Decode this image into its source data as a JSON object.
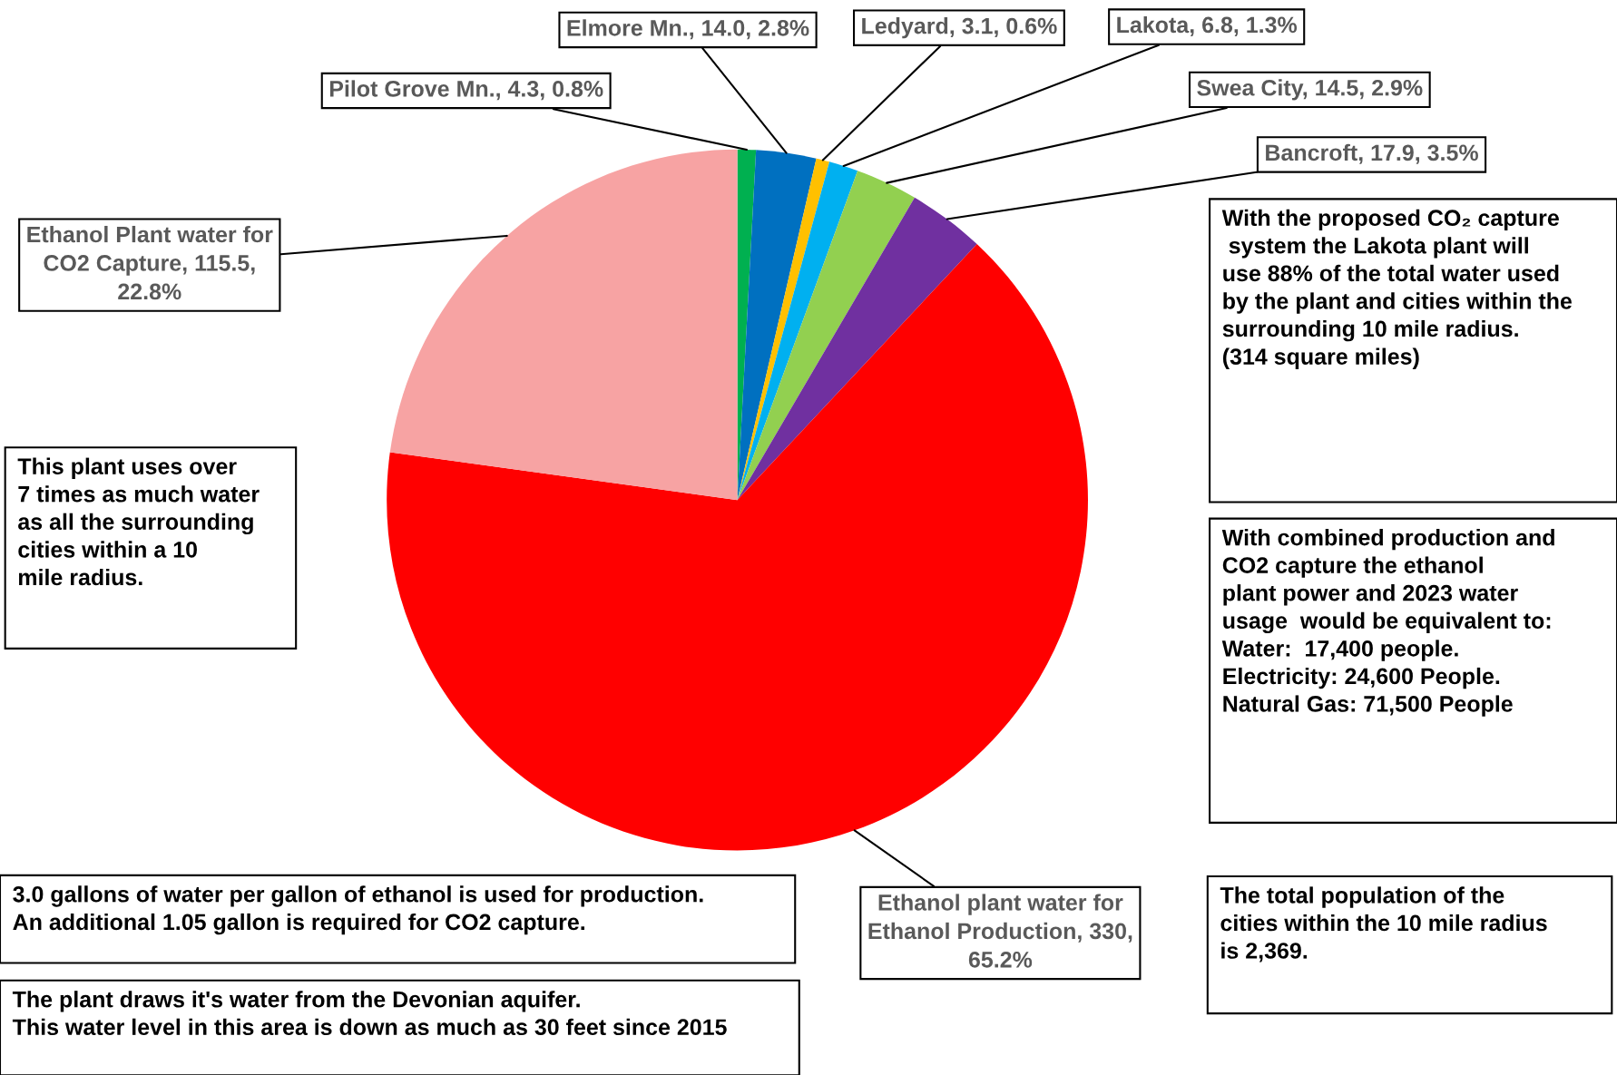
{
  "chart_data": {
    "type": "pie",
    "categories": [
      "Pilot Grove Mn.",
      "Elmore Mn.",
      "Ledyard",
      "Lakota",
      "Swea City",
      "Bancroft",
      "Ethanol plant water for\nEthanol Production",
      "Ethanol Plant water for\nCO2 Capture"
    ],
    "values": [
      4.3,
      14.0,
      3.1,
      6.8,
      14.5,
      17.9,
      330,
      115.5
    ],
    "value_labels": [
      "4.3, 0.8%",
      "14.0, 2.8%",
      "3.1, 0.6%",
      "6.8, 1.3%",
      "14.5, 2.9%",
      "17.9, 3.5%",
      "330,\n65.2%",
      "115.5,\n22.8%"
    ],
    "colors": [
      "#00b050",
      "#0070c0",
      "#ffc000",
      "#00b0f0",
      "#92d050",
      "#7030a0",
      "#ff0000",
      "#f7a3a3"
    ],
    "annotations": [
      "This plant uses over\n7 times as much water\nas all the surrounding\ncities within a 10\nmile radius.",
      "With the proposed CO₂ capture\n system the Lakota plant will\nuse 88% of the total water used\nby the plant and cities within the\nsurrounding 10 mile radius.\n(314 square miles)",
      "With combined production and\nCO2 capture the ethanol\nplant power and 2023 water\nusage  would be equivalent to:\nWater:  17,400 people.\nElectricity: 24,600 People.\nNatural Gas: 71,500 People",
      "3.0 gallons of water per gallon of ethanol is used for production.\nAn additional 1.05 gallon is required for CO2 capture.",
      "The plant draws it's water from the Devonian aquifer.\nThis water level in this area is down as much as 30 feet since 2015",
      "The total population of the\ncities within the 10 mile radius\nis 2,369."
    ]
  }
}
